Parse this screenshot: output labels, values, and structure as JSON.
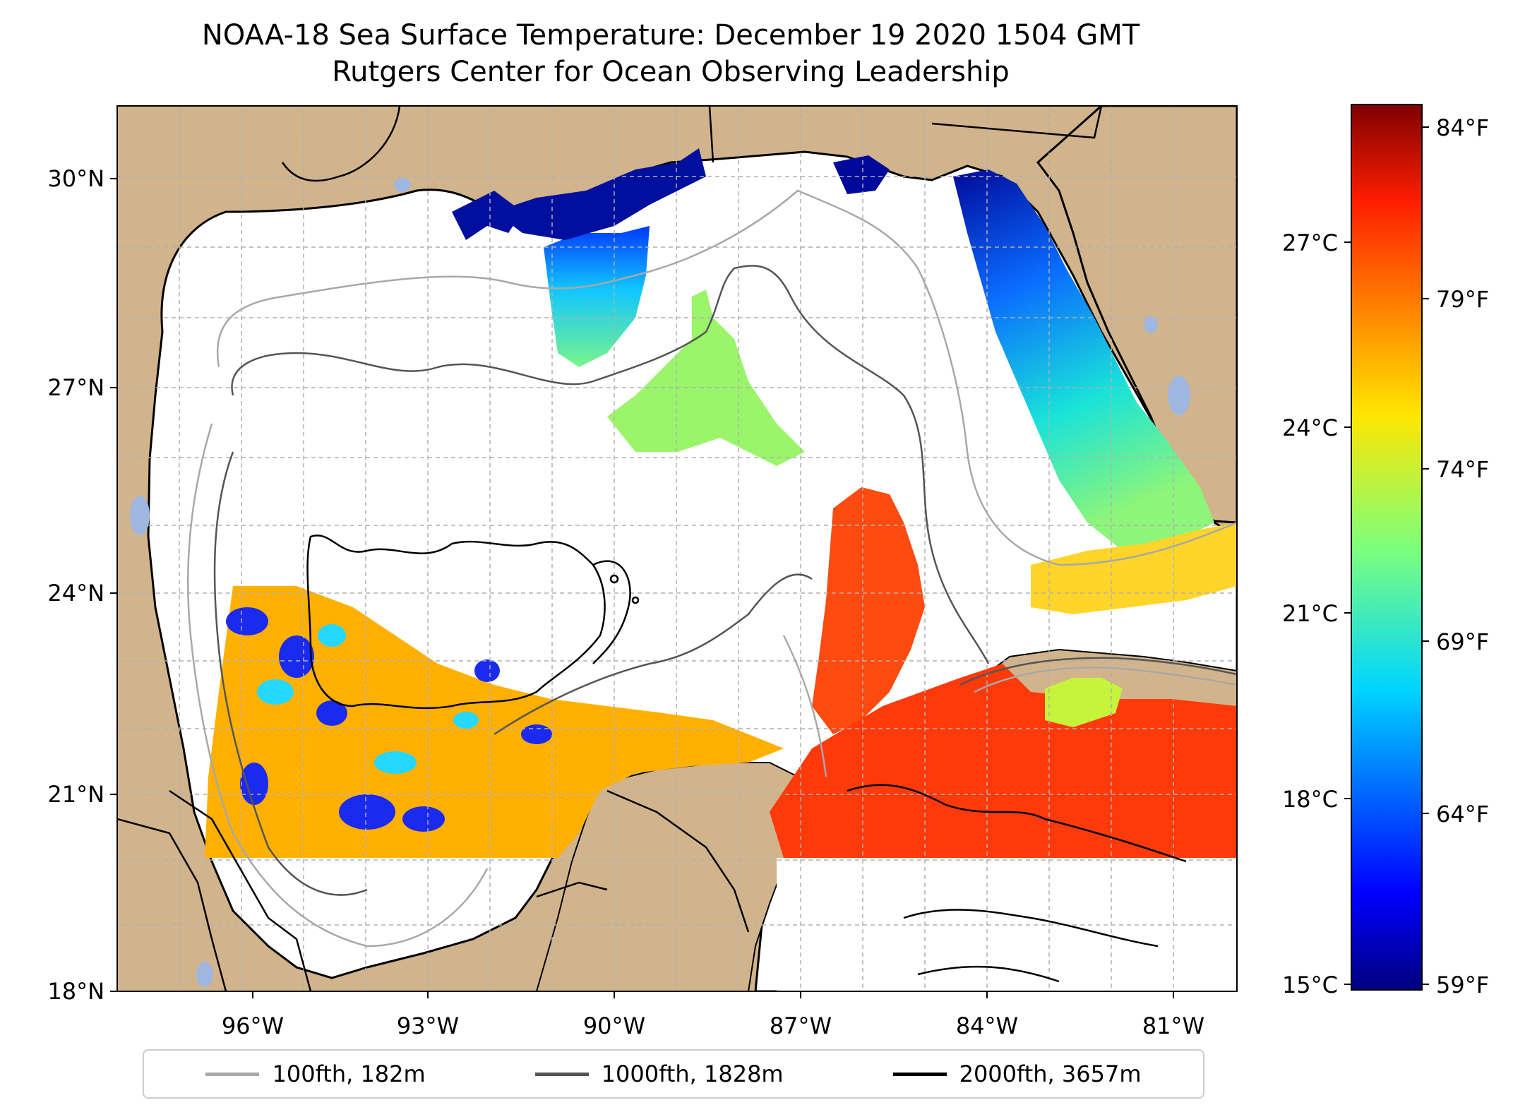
{
  "title": {
    "line1": "NOAA-18 Sea Surface Temperature: December 19 2020 1504 GMT",
    "line2": "Rutgers Center for Ocean Observing Leadership"
  },
  "map": {
    "region": "Gulf of Mexico",
    "lat_ticks": [
      {
        "value": 30,
        "label": "30°N"
      },
      {
        "value": 27,
        "label": "27°N"
      },
      {
        "value": 24,
        "label": "24°N"
      },
      {
        "value": 21,
        "label": "21°N"
      },
      {
        "value": 18,
        "label": "18°N"
      }
    ],
    "lon_ticks": [
      {
        "value": -96,
        "label": "96°W"
      },
      {
        "value": -93,
        "label": "93°W"
      },
      {
        "value": -90,
        "label": "90°W"
      },
      {
        "value": -87,
        "label": "87°W"
      },
      {
        "value": -84,
        "label": "84°W"
      },
      {
        "value": -81,
        "label": "81°W"
      }
    ],
    "lon_range": [
      -98,
      -80.3
    ],
    "lat_range": [
      18,
      31
    ],
    "colors": {
      "land": "#d2b48c",
      "water_nodata": "#ffffff",
      "grid": "#b0b0b0"
    }
  },
  "colorbar": {
    "colormap": "jet",
    "celsius_ticks": [
      {
        "value": 27,
        "label": "27°C"
      },
      {
        "value": 24,
        "label": "24°C"
      },
      {
        "value": 21,
        "label": "21°C"
      },
      {
        "value": 18,
        "label": "18°C"
      },
      {
        "value": 15,
        "label": "15°C"
      }
    ],
    "fahrenheit_ticks": [
      {
        "value": 84,
        "label": "84°F"
      },
      {
        "value": 79,
        "label": "79°F"
      },
      {
        "value": 74,
        "label": "74°F"
      },
      {
        "value": 69,
        "label": "69°F"
      },
      {
        "value": 64,
        "label": "64°F"
      },
      {
        "value": 59,
        "label": "59°F"
      }
    ],
    "range_f": [
      58.6,
      85
    ]
  },
  "legend": {
    "items": [
      {
        "label": "100fth, 182m",
        "color": "#a8a8a8"
      },
      {
        "label": "1000fth, 1828m",
        "color": "#555555"
      },
      {
        "label": "2000fth, 3657m",
        "color": "#000000"
      }
    ]
  }
}
